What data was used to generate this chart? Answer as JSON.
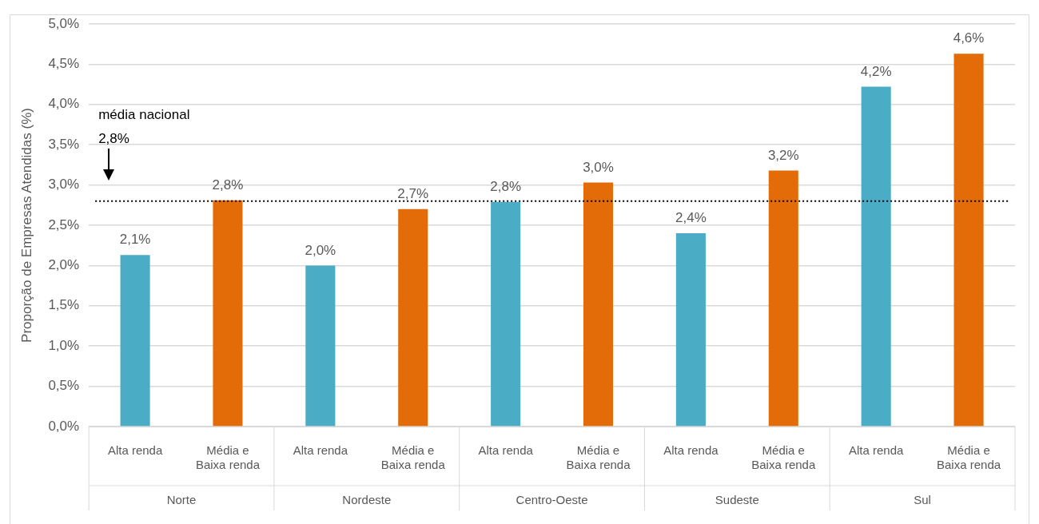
{
  "chart_data": {
    "type": "bar",
    "ylabel": "Proporção de Empresas Atendidas (%)",
    "categories": [
      "Alta renda",
      "Média e Baixa renda",
      "Alta renda",
      "Média e Baixa renda",
      "Alta renda",
      "Média e Baixa renda",
      "Alta renda",
      "Média e Baixa renda",
      "Alta renda",
      "Média e Baixa renda"
    ],
    "values": [
      2.13,
      2.81,
      2.0,
      2.7,
      2.79,
      3.03,
      2.4,
      3.18,
      4.22,
      4.63
    ],
    "colors": [
      "#4bacc6",
      "#e36c09",
      "#4bacc6",
      "#e36c09",
      "#4bacc6",
      "#e36c09",
      "#4bacc6",
      "#e36c09",
      "#4bacc6",
      "#e36c09"
    ],
    "value_labels": [
      "2,1%",
      "2,8%",
      "2,0%",
      "2,7%",
      "2,8%",
      "3,0%",
      "2,4%",
      "3,2%",
      "4,2%",
      "4,6%"
    ],
    "annotations": [
      "Norte",
      "Nordeste",
      "Centro-Oeste",
      "Sudeste",
      "Sul"
    ],
    "ylim": [
      0,
      5
    ],
    "yticks": [
      {
        "value": 0,
        "label": "0,0%"
      },
      {
        "value": 0.5,
        "label": "0,5%"
      },
      {
        "value": 1,
        "label": "1,0%"
      },
      {
        "value": 1.5,
        "label": "1,5%"
      },
      {
        "value": 2,
        "label": "2,0%"
      },
      {
        "value": 2.5,
        "label": "2,5%"
      },
      {
        "value": 3,
        "label": "3,0%"
      },
      {
        "value": 3.5,
        "label": "3,5%"
      },
      {
        "value": 4,
        "label": "4,0%"
      },
      {
        "value": 4.5,
        "label": "4,5%"
      },
      {
        "value": 5,
        "label": "5,0%"
      }
    ],
    "grid": "y",
    "ref_lines": [
      {
        "axis": "y",
        "value": 2.8,
        "label": "média nacional 2,8%",
        "color": "#000000",
        "line_style": "dotted"
      }
    ],
    "legend": false
  }
}
